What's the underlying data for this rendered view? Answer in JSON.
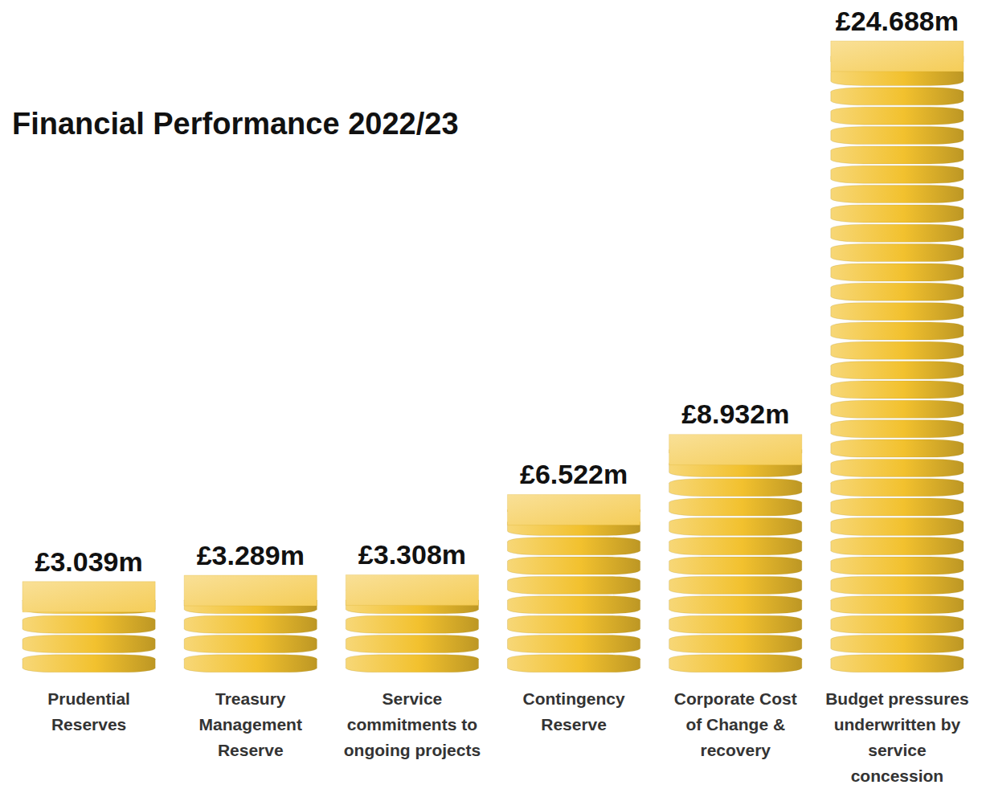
{
  "chart_data": {
    "type": "bar",
    "title": "Financial Performance 2022/23",
    "categories": [
      "Prudential Reserves",
      "Treasury Management Reserve",
      "Service commitments to ongoing projects",
      "Contingency Reserve",
      "Corporate Cost of Change & recovery",
      "Budget pressures underwritten by service concession"
    ],
    "values": [
      3.039,
      3.289,
      3.308,
      6.522,
      8.932,
      24.688
    ],
    "value_labels": [
      "£3.039m",
      "£3.289m",
      "£3.308m",
      "£6.522m",
      "£8.932m",
      "£24.688m"
    ],
    "color": "#f2c12e",
    "ylim": [
      0,
      25
    ],
    "grid": false,
    "data_labels": true,
    "tick_labels": "x"
  }
}
